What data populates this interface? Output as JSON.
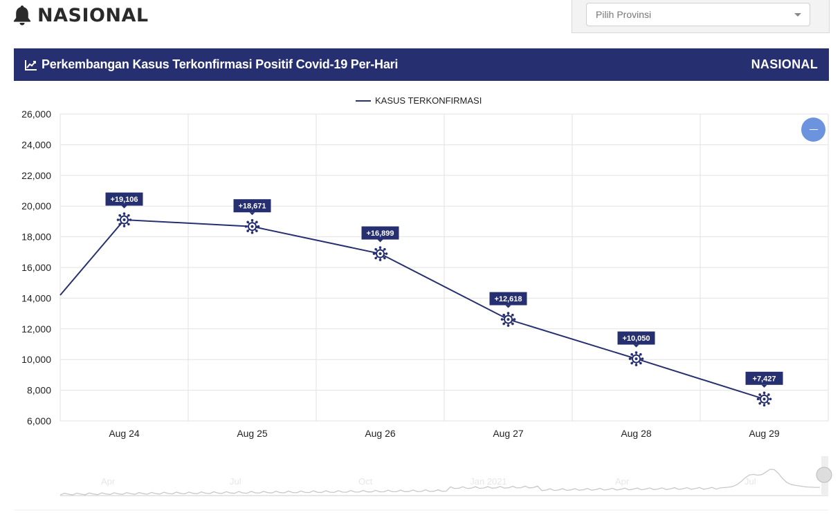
{
  "page": {
    "title": "NASIONAL"
  },
  "province_select": {
    "placeholder": "Pilih Provinsi"
  },
  "chart_header": {
    "title": "Perkembangan Kasus Terkonfirmasi Positif Covid-19 Per-Hari",
    "region": "NASIONAL"
  },
  "icons": {
    "bell": "bell-icon",
    "chart": "line-chart-icon",
    "marker": "virus-icon",
    "zoom": "zoom-out-icon"
  },
  "colors": {
    "header": "#262f6f",
    "series": "#262f6f",
    "zoom_button": "#6b93de"
  },
  "chart_data": {
    "type": "line",
    "legend_position": "top-center",
    "grid": true,
    "categories": [
      "Aug 24",
      "Aug 25",
      "Aug 26",
      "Aug 27",
      "Aug 28",
      "Aug 29"
    ],
    "series": [
      {
        "name": "KASUS TERKONFIRMASI",
        "color": "#262f6f",
        "values": [
          19106,
          18671,
          16899,
          12618,
          10050,
          7427
        ],
        "data_labels": [
          "+19,106",
          "+18,671",
          "+16,899",
          "+12,618",
          "+10,050",
          "+7,427"
        ],
        "previous_value": 14200
      }
    ],
    "ylim": [
      6000,
      26000
    ],
    "y_ticks": [
      6000,
      8000,
      10000,
      12000,
      14000,
      16000,
      18000,
      20000,
      22000,
      24000,
      26000
    ],
    "y_tick_labels": [
      "6,000",
      "8,000",
      "10,000",
      "12,000",
      "14,000",
      "16,000",
      "18,000",
      "20,000",
      "22,000",
      "24,000",
      "26,000"
    ],
    "navigator_labels": [
      "Apr",
      "Jul",
      "Oct",
      "Jan 2021",
      "Apr",
      "Jul"
    ]
  }
}
